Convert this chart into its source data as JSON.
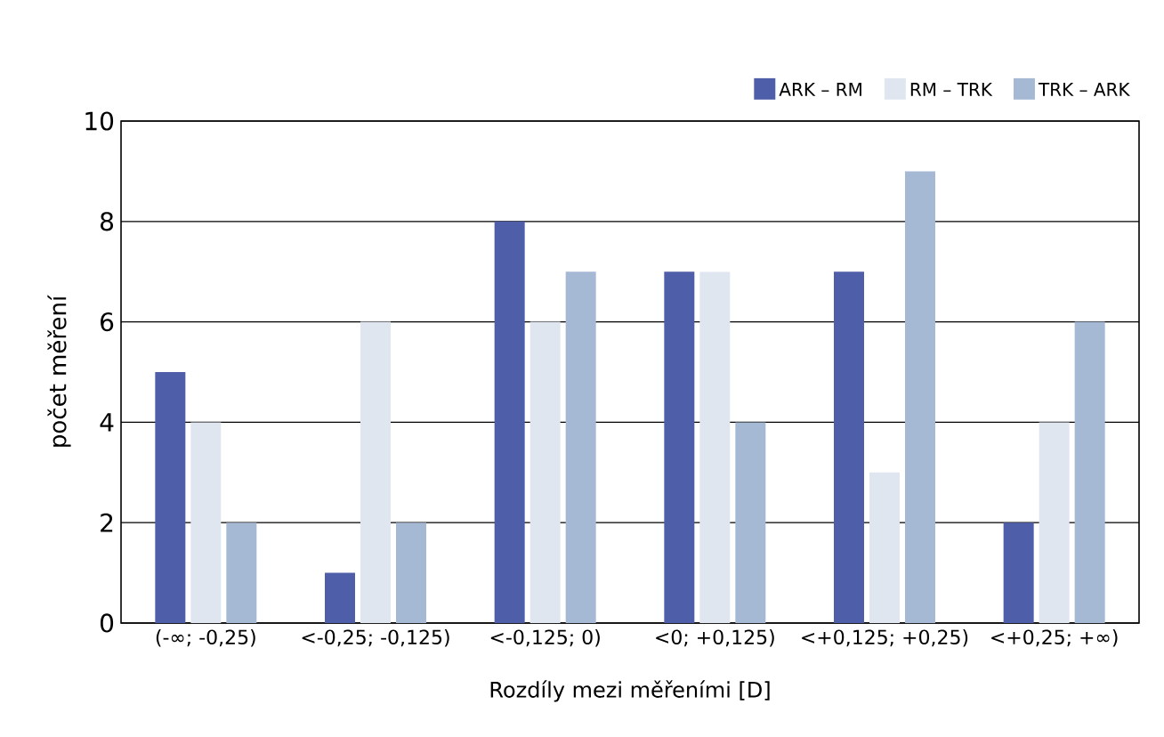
{
  "chart_data": {
    "type": "bar",
    "xlabel": "Rozdíly mezi měřeními [D]",
    "ylabel": "počet měření",
    "categories": [
      "(-∞; -0,25)",
      "<-0,25; -0,125)",
      "<-0,125; 0)",
      "<0; +0,125)",
      "<+0,125; +0,25)",
      "<+0,25; +∞)"
    ],
    "series": [
      {
        "name": "ARK – RM",
        "color": "#4f5ea8",
        "values": [
          5,
          1,
          8,
          7,
          7,
          2
        ]
      },
      {
        "name": "RM – TRK",
        "color": "#e0e6f0",
        "values": [
          4,
          6,
          6,
          7,
          3,
          4
        ]
      },
      {
        "name": "TRK – ARK",
        "color": "#a6b9d4",
        "values": [
          2,
          2,
          7,
          4,
          9,
          6
        ]
      }
    ],
    "ylim": [
      0,
      10
    ],
    "yticks": [
      0,
      2,
      4,
      6,
      8,
      10
    ],
    "grid": "y",
    "legend": "top right"
  }
}
